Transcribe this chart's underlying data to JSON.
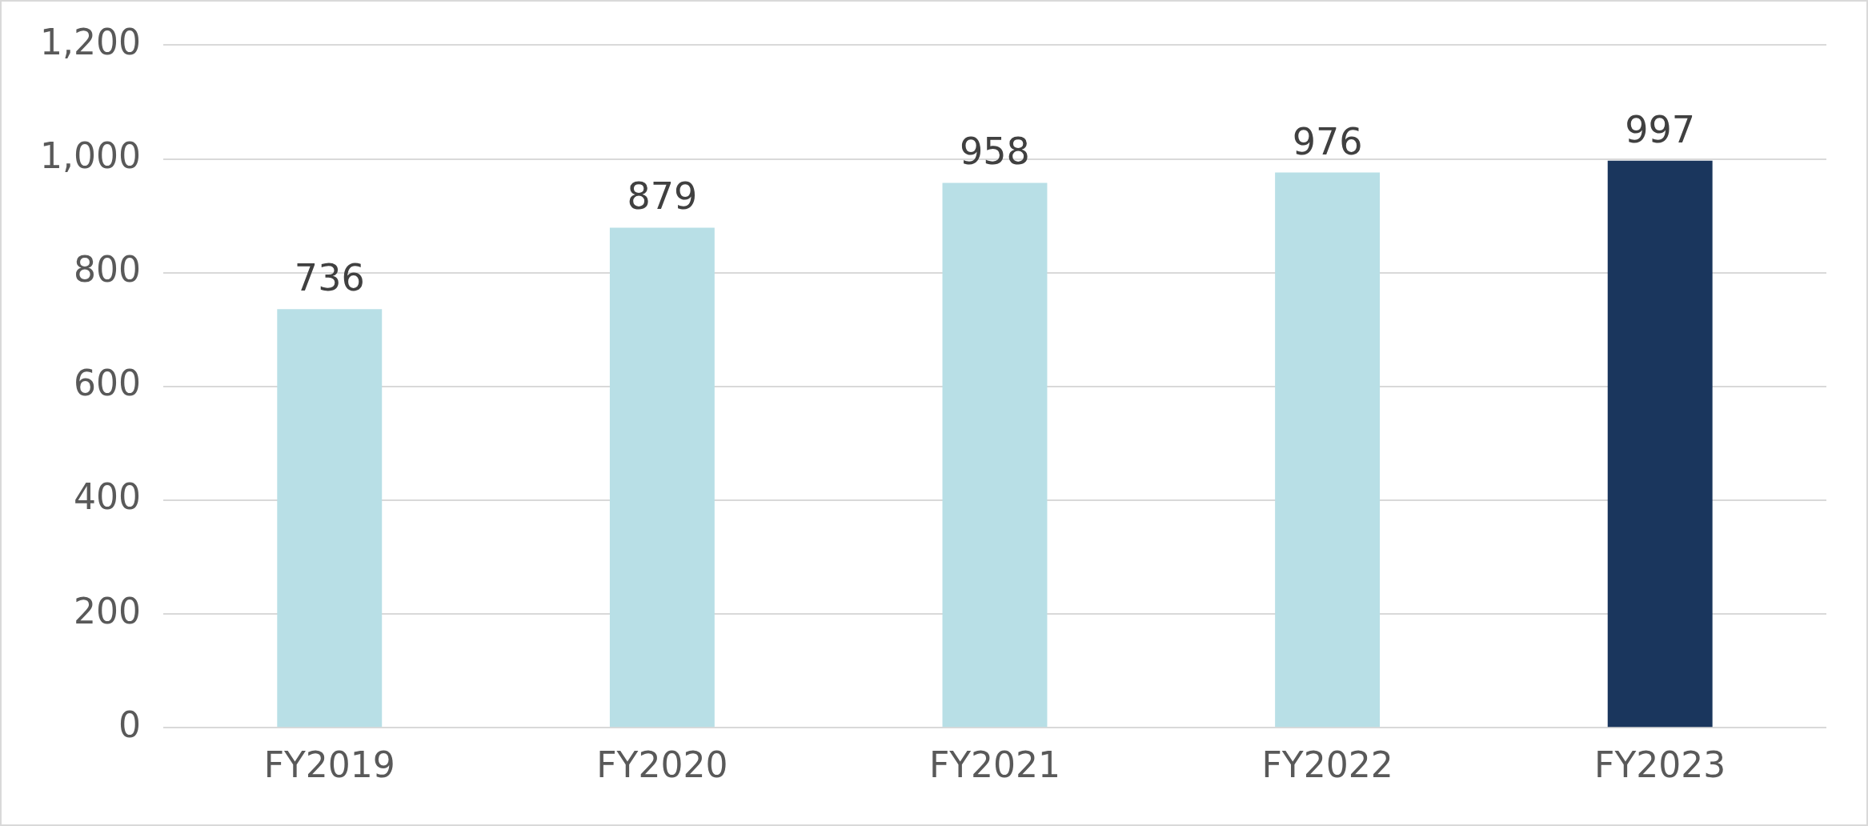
{
  "chart_data": {
    "type": "bar",
    "categories": [
      "FY2019",
      "FY2020",
      "FY2021",
      "FY2022",
      "FY2023"
    ],
    "values": [
      736,
      879,
      958,
      976,
      997
    ],
    "colors": [
      "#b8dfe6",
      "#b8dfe6",
      "#b8dfe6",
      "#b8dfe6",
      "#1a365d"
    ],
    "ylim": [
      0,
      1200
    ],
    "yticks": [
      0,
      200,
      400,
      600,
      800,
      {
        "value": 1000,
        "label": "1,000"
      },
      {
        "value": 1200,
        "label": "1,200"
      }
    ],
    "grid": "y",
    "data_labels": true,
    "legend": false
  }
}
